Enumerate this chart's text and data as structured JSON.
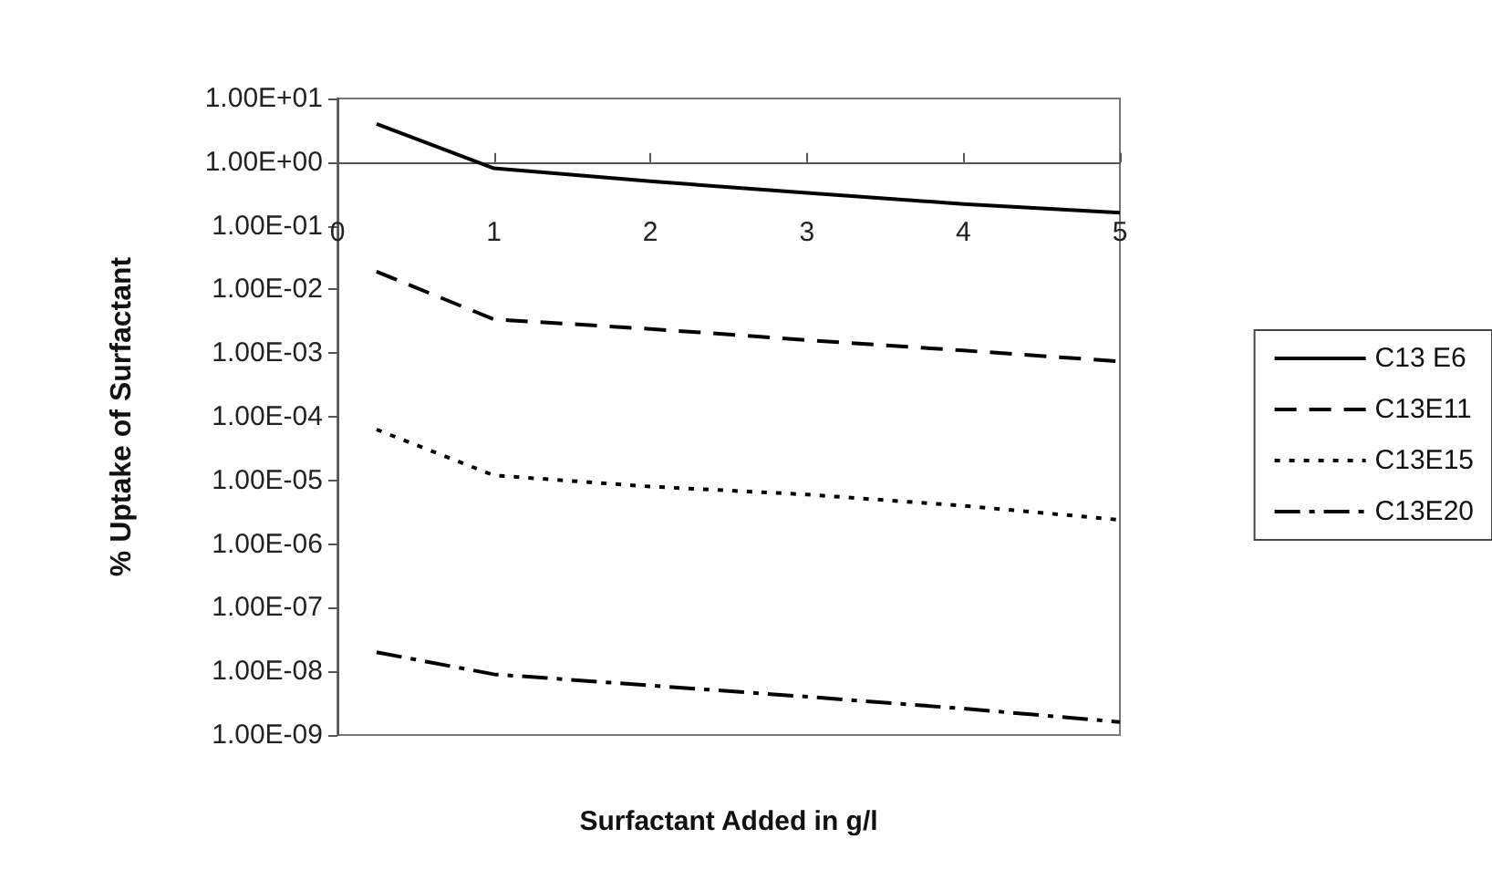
{
  "chart_data": {
    "type": "line",
    "xlabel": "Surfactant Added in g/l",
    "ylabel": "% Uptake of Surfactant",
    "log": "y",
    "grid": false,
    "legend": "right",
    "marker": "none",
    "xlim": [
      0,
      5
    ],
    "xticks": [
      0,
      1,
      2,
      3,
      4,
      5
    ],
    "ylim": [
      1e-09,
      10
    ],
    "yticks": [
      {
        "value": 1e-09,
        "label": "1.00E-09"
      },
      {
        "value": 1e-08,
        "label": "1.00E-08"
      },
      {
        "value": 1e-07,
        "label": "1.00E-07"
      },
      {
        "value": 1e-06,
        "label": "1.00E-06"
      },
      {
        "value": 1e-05,
        "label": "1.00E-05"
      },
      {
        "value": 0.0001,
        "label": "1.00E-04"
      },
      {
        "value": 0.001,
        "label": "1.00E-03"
      },
      {
        "value": 0.01,
        "label": "1.00E-02"
      },
      {
        "value": 0.1,
        "label": "1.00E-01"
      },
      {
        "value": 1,
        "label": "1.00E+00"
      },
      {
        "value": 10,
        "label": "1.00E+01"
      }
    ],
    "x": [
      0.25,
      1,
      2,
      3,
      4,
      5
    ],
    "series": [
      {
        "name": "C13 E6",
        "color": "#000000",
        "line_style": "solid",
        "values": [
          4,
          0.8,
          0.5,
          0.33,
          0.22,
          0.16
        ]
      },
      {
        "name": "C13E11",
        "color": "#000000",
        "line_style": "dashed",
        "values": [
          0.019,
          0.0034,
          0.0024,
          0.0016,
          0.0011,
          0.00074
        ]
      },
      {
        "name": "C13E15",
        "color": "#000000",
        "line_style": "dotted",
        "values": [
          6.3e-05,
          1.2e-05,
          8e-06,
          6e-06,
          4e-06,
          2.4e-06
        ]
      },
      {
        "name": "C13E20",
        "color": "#000000",
        "line_style": "dashdot",
        "values": [
          2e-08,
          9e-09,
          6e-09,
          4e-09,
          2.6e-09,
          1.6e-09
        ]
      }
    ]
  }
}
